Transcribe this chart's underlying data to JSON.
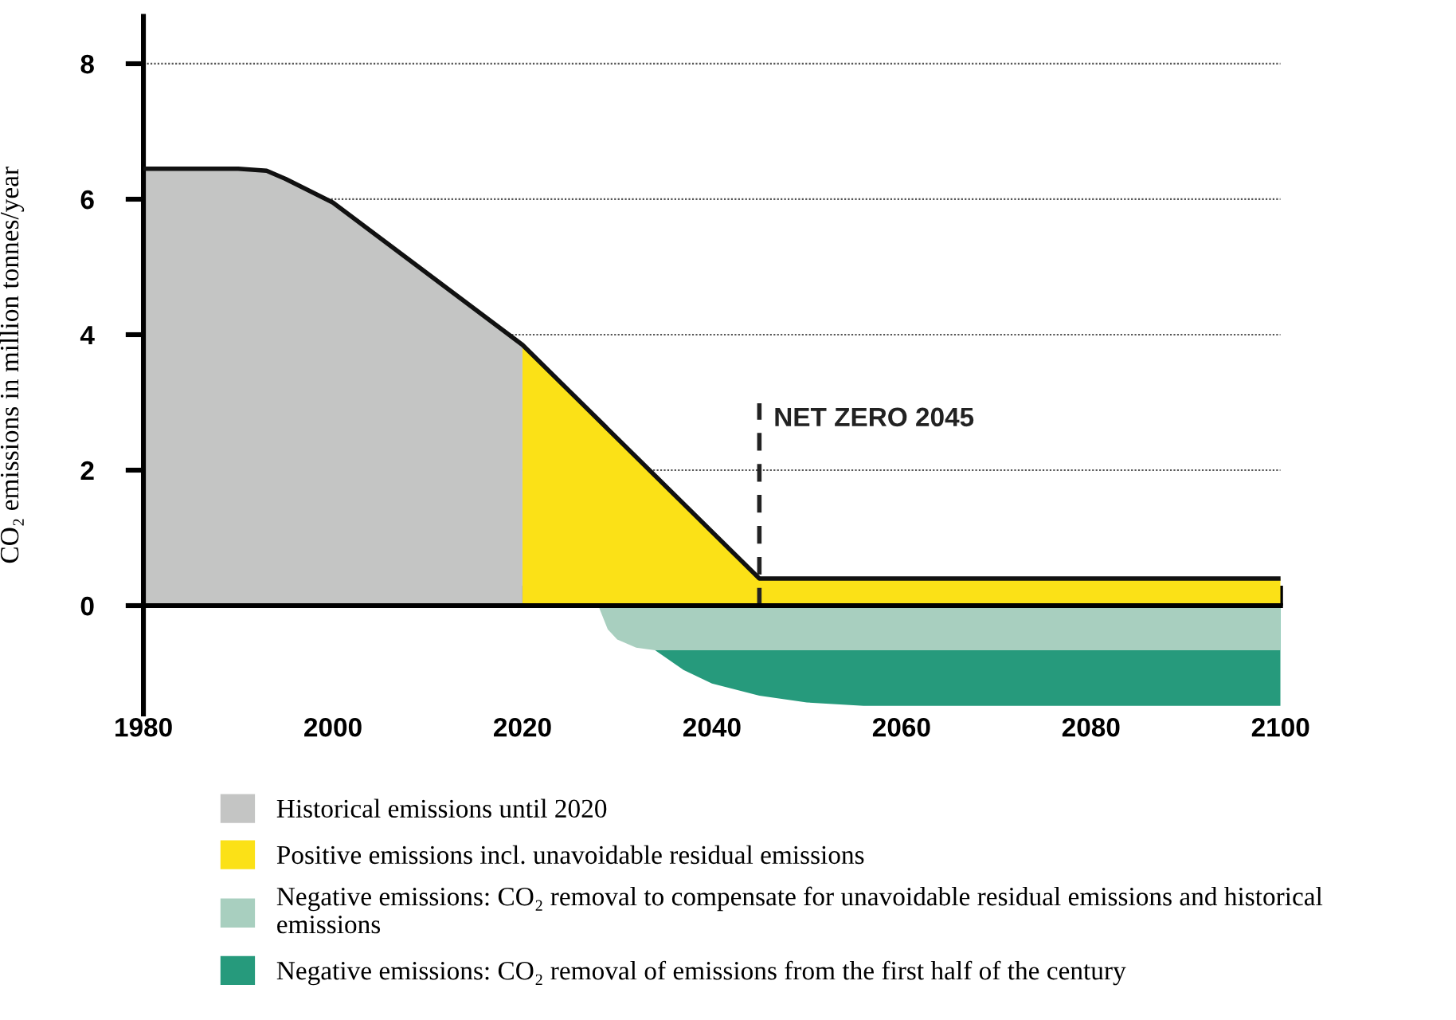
{
  "chart_data": {
    "type": "area",
    "ylabel": "CO₂ emissions in million tonnes/year",
    "xlim": [
      1980,
      2100
    ],
    "ylim": [
      -1.6,
      8.7
    ],
    "xticks": [
      1980,
      2000,
      2020,
      2040,
      2060,
      2080,
      2100
    ],
    "yticks": [
      0,
      2,
      4,
      6,
      8
    ],
    "grid": "y",
    "legend": "bottom",
    "series": [
      {
        "name": "Historical emissions until 2020",
        "color": "#c4c5c4",
        "x": [
          1980,
          1990,
          1993,
          1995,
          2000,
          2020
        ],
        "values": [
          6.45,
          6.45,
          6.42,
          6.3,
          5.95,
          3.85
        ]
      },
      {
        "name": "Positive emissions incl. unavoidable residual emissions",
        "color": "#fbe117",
        "x": [
          2020,
          2045,
          2100
        ],
        "values": [
          3.85,
          0.4,
          0.4
        ]
      },
      {
        "name": "Negative emissions: CO₂ removal to compensate for unavoidable residual emissions and historical\nemissions",
        "color": "#a8cfbf",
        "x": [
          2028,
          2029,
          2030,
          2032,
          2034,
          2100
        ],
        "values": [
          0,
          -0.35,
          -0.5,
          -0.62,
          -0.66,
          -0.66
        ]
      },
      {
        "name": "Negative emissions: CO₂ removal of emissions from the first half of the century",
        "color": "#269a7c",
        "x": [
          2034,
          2037,
          2040,
          2045,
          2050,
          2056,
          2100
        ],
        "values": [
          -0.66,
          -0.95,
          -1.15,
          -1.33,
          -1.43,
          -1.48,
          -1.48
        ]
      },
      {
        "type": "line",
        "color": "#111111",
        "x": [
          1980,
          1990,
          1993,
          1995,
          2000,
          2020,
          2045,
          2100
        ],
        "values": [
          6.45,
          6.45,
          6.42,
          6.3,
          5.95,
          3.85,
          0.4,
          0.4
        ]
      }
    ],
    "ref_lines": [
      {
        "axis": "x",
        "value": 2045,
        "label": "NET ZERO 2045",
        "color": "#222222",
        "line_style": "dashed"
      }
    ]
  }
}
